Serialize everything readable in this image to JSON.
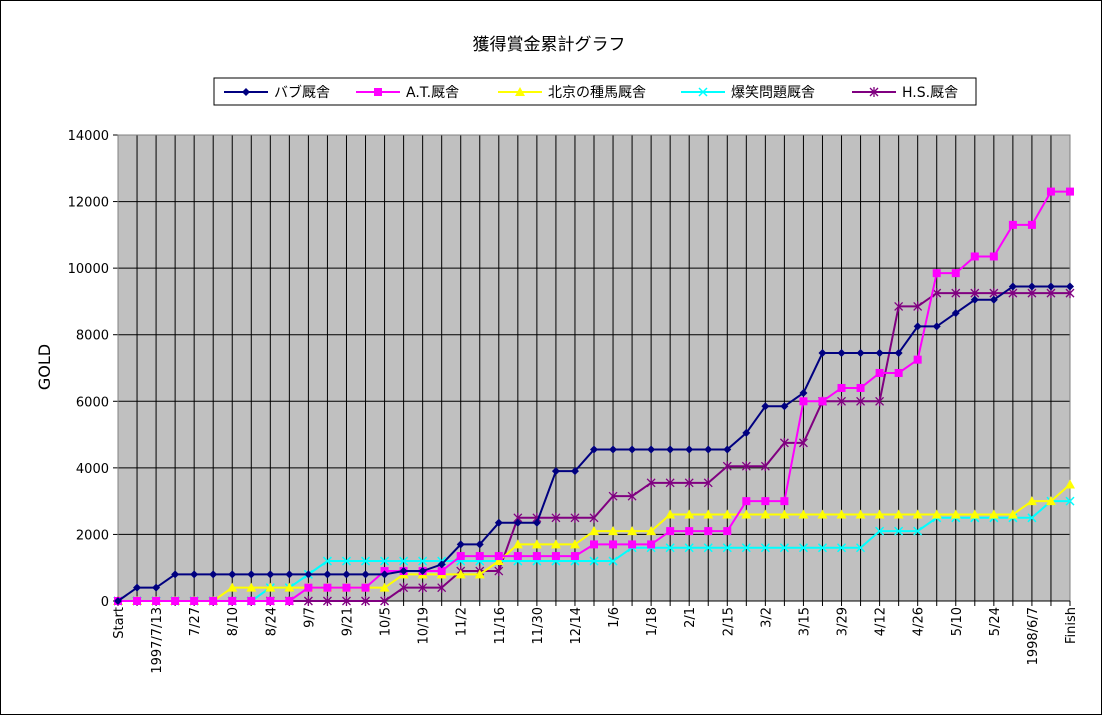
{
  "chart_data": {
    "type": "line",
    "title": "獲得賞金累計グラフ",
    "ylabel": "GOLD",
    "xlabel": "",
    "ylim": [
      0,
      14000
    ],
    "yticks": [
      0,
      2000,
      4000,
      6000,
      8000,
      10000,
      12000,
      14000
    ],
    "grid": true,
    "legend_position": "top",
    "plot_background": "#c0c0c0",
    "x_labels": [
      {
        "i": 0,
        "text": "Start"
      },
      {
        "i": 2,
        "text": "1997/7/13"
      },
      {
        "i": 4,
        "text": "7/27"
      },
      {
        "i": 6,
        "text": "8/10"
      },
      {
        "i": 8,
        "text": "8/24"
      },
      {
        "i": 10,
        "text": "9/7"
      },
      {
        "i": 12,
        "text": "9/21"
      },
      {
        "i": 14,
        "text": "10/5"
      },
      {
        "i": 16,
        "text": "10/19"
      },
      {
        "i": 18,
        "text": "11/2"
      },
      {
        "i": 20,
        "text": "11/16"
      },
      {
        "i": 22,
        "text": "11/30"
      },
      {
        "i": 24,
        "text": "12/14"
      },
      {
        "i": 26,
        "text": "1/6"
      },
      {
        "i": 28,
        "text": "1/18"
      },
      {
        "i": 30,
        "text": "2/1"
      },
      {
        "i": 32,
        "text": "2/15"
      },
      {
        "i": 34,
        "text": "3/2"
      },
      {
        "i": 36,
        "text": "3/15"
      },
      {
        "i": 38,
        "text": "3/29"
      },
      {
        "i": 40,
        "text": "4/12"
      },
      {
        "i": 42,
        "text": "4/26"
      },
      {
        "i": 44,
        "text": "5/10"
      },
      {
        "i": 46,
        "text": "5/24"
      },
      {
        "i": 48,
        "text": "1998/6/7"
      },
      {
        "i": 50,
        "text": "Finish"
      }
    ],
    "series": [
      {
        "name": "バブ厩舎",
        "color": "#000080",
        "marker": "diamond",
        "values": [
          0,
          400,
          400,
          800,
          800,
          800,
          800,
          800,
          800,
          800,
          800,
          800,
          800,
          800,
          800,
          900,
          900,
          1100,
          1700,
          1700,
          2350,
          2350,
          2350,
          3900,
          3900,
          4550,
          4550,
          4550,
          4550,
          4550,
          4550,
          4550,
          4550,
          5050,
          5850,
          5850,
          6250,
          7450,
          7450,
          7450,
          7450,
          7450,
          8250,
          8250,
          8650,
          9050,
          9050,
          9450,
          9450,
          9450,
          9450
        ]
      },
      {
        "name": "A.T.厩舎",
        "color": "#ff00ff",
        "marker": "square",
        "values": [
          0,
          0,
          0,
          0,
          0,
          0,
          0,
          0,
          0,
          0,
          400,
          400,
          400,
          400,
          900,
          900,
          900,
          900,
          1350,
          1350,
          1350,
          1350,
          1350,
          1350,
          1350,
          1700,
          1700,
          1700,
          1700,
          2100,
          2100,
          2100,
          2100,
          3000,
          3000,
          3000,
          6000,
          6000,
          6400,
          6400,
          6850,
          6850,
          7250,
          9850,
          9850,
          10350,
          10350,
          11300,
          11300,
          12300,
          12300
        ]
      },
      {
        "name": "北京の種馬厩舎",
        "color": "#ffff00",
        "marker": "triangle",
        "values": [
          0,
          0,
          0,
          0,
          0,
          0,
          400,
          400,
          400,
          400,
          400,
          400,
          400,
          400,
          400,
          800,
          800,
          800,
          800,
          800,
          1200,
          1700,
          1700,
          1700,
          1700,
          2100,
          2100,
          2100,
          2100,
          2600,
          2600,
          2600,
          2600,
          2600,
          2600,
          2600,
          2600,
          2600,
          2600,
          2600,
          2600,
          2600,
          2600,
          2600,
          2600,
          2600,
          2600,
          2600,
          3000,
          3000,
          3500
        ]
      },
      {
        "name": "爆笑問題厩舎",
        "color": "#00ffff",
        "marker": "x",
        "values": [
          0,
          0,
          0,
          0,
          0,
          0,
          0,
          0,
          400,
          400,
          800,
          1200,
          1200,
          1200,
          1200,
          1200,
          1200,
          1200,
          1200,
          1200,
          1200,
          1200,
          1200,
          1200,
          1200,
          1200,
          1200,
          1600,
          1600,
          1600,
          1600,
          1600,
          1600,
          1600,
          1600,
          1600,
          1600,
          1600,
          1600,
          1600,
          2100,
          2100,
          2100,
          2500,
          2500,
          2500,
          2500,
          2500,
          2500,
          3000,
          3000
        ]
      },
      {
        "name": "H.S.厩舎",
        "color": "#800080",
        "marker": "star",
        "values": [
          0,
          0,
          0,
          0,
          0,
          0,
          0,
          0,
          0,
          0,
          0,
          0,
          0,
          0,
          0,
          400,
          400,
          400,
          900,
          900,
          900,
          2500,
          2500,
          2500,
          2500,
          2500,
          3150,
          3150,
          3550,
          3550,
          3550,
          3550,
          4050,
          4050,
          4050,
          4750,
          4750,
          6000,
          6000,
          6000,
          6000,
          8850,
          8850,
          9250,
          9250,
          9250,
          9250,
          9250,
          9250,
          9250,
          9250
        ]
      }
    ]
  }
}
